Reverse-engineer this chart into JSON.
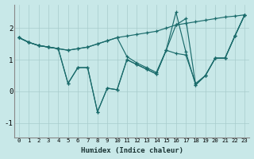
{
  "xlabel": "Humidex (Indice chaleur)",
  "bg_color": "#c8e8e8",
  "line_color": "#1a6b6b",
  "grid_color": "#a8cccc",
  "xlim": [
    -0.5,
    23.5
  ],
  "ylim": [
    -1.45,
    2.75
  ],
  "lines": [
    [
      1.7,
      1.55,
      1.45,
      1.4,
      1.35,
      1.3,
      1.35,
      1.4,
      1.5,
      1.6,
      1.7,
      1.75,
      1.8,
      1.85,
      1.9,
      2.0,
      2.1,
      2.15,
      2.2,
      2.25,
      2.3,
      2.35,
      2.38,
      2.42
    ],
    [
      1.7,
      1.55,
      1.45,
      1.4,
      1.35,
      0.25,
      0.75,
      0.75,
      -0.65,
      0.1,
      0.05,
      1.0,
      0.85,
      0.7,
      0.55,
      1.3,
      2.5,
      1.25,
      0.2,
      0.5,
      1.05,
      1.05,
      1.75,
      2.42
    ],
    [
      1.7,
      1.55,
      1.45,
      1.4,
      1.35,
      0.25,
      0.75,
      0.75,
      -0.65,
      0.1,
      0.05,
      1.0,
      0.85,
      0.7,
      0.55,
      1.3,
      2.1,
      2.3,
      0.2,
      0.5,
      1.05,
      1.05,
      1.75,
      2.42
    ],
    [
      1.7,
      1.55,
      1.45,
      1.4,
      1.35,
      1.3,
      1.35,
      1.4,
      1.5,
      1.6,
      1.7,
      1.1,
      0.9,
      0.75,
      0.6,
      1.3,
      1.2,
      1.15,
      0.25,
      0.5,
      1.05,
      1.05,
      1.75,
      2.42
    ]
  ],
  "xticks": [
    0,
    1,
    2,
    3,
    4,
    5,
    6,
    7,
    8,
    9,
    10,
    11,
    12,
    13,
    14,
    15,
    16,
    17,
    18,
    19,
    20,
    21,
    22,
    23
  ],
  "yticks": [
    -1,
    0,
    1,
    2
  ]
}
